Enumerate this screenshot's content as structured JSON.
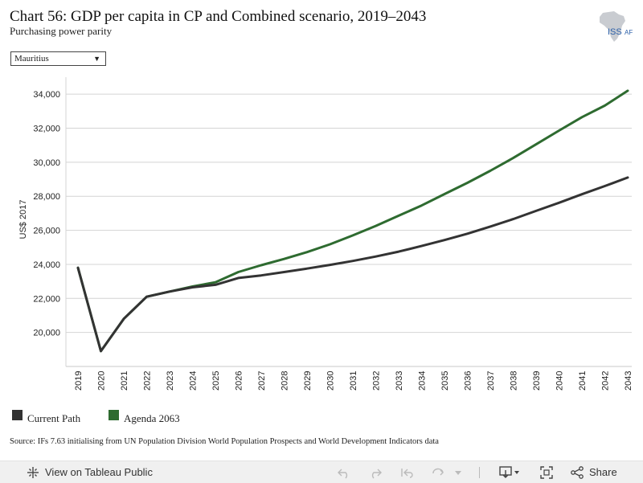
{
  "header": {
    "title": "Chart 56: GDP per capita in CP and Combined scenario, 2019–2043",
    "subtitle": "Purchasing power parity",
    "logo_text": "ISS"
  },
  "filter": {
    "selected": "Mauritius"
  },
  "chart_data": {
    "type": "line",
    "title": "Chart 56: GDP per capita in CP and Combined scenario, 2019–2043",
    "subtitle": "Purchasing power parity",
    "xlabel": "",
    "ylabel": "US$ 2017",
    "x": [
      2019,
      2020,
      2021,
      2022,
      2023,
      2024,
      2025,
      2026,
      2027,
      2028,
      2029,
      2030,
      2031,
      2032,
      2033,
      2034,
      2035,
      2036,
      2037,
      2038,
      2039,
      2040,
      2041,
      2042,
      2043
    ],
    "ylim": [
      18000,
      35000
    ],
    "yticks": [
      20000,
      22000,
      24000,
      26000,
      28000,
      30000,
      32000,
      34000
    ],
    "ytick_labels": [
      "20,000",
      "22,000",
      "24,000",
      "26,000",
      "28,000",
      "30,000",
      "32,000",
      "34,000"
    ],
    "grid": true,
    "legend_position": "bottom-left",
    "series": [
      {
        "name": "Current Path",
        "color": "#333333",
        "values": [
          23800,
          18900,
          20800,
          22100,
          22400,
          22650,
          22800,
          23200,
          23350,
          23550,
          23750,
          23970,
          24200,
          24460,
          24750,
          25080,
          25430,
          25800,
          26220,
          26660,
          27140,
          27620,
          28120,
          28600,
          29100
        ]
      },
      {
        "name": "Agenda 2063",
        "color": "#2e6b30",
        "values": [
          23800,
          18900,
          20800,
          22100,
          22400,
          22700,
          22950,
          23550,
          23950,
          24320,
          24720,
          25180,
          25700,
          26260,
          26860,
          27460,
          28130,
          28790,
          29500,
          30250,
          31050,
          31860,
          32650,
          33330,
          34200
        ]
      }
    ]
  },
  "source": "Source: IFs 7.63 initialising from UN Population Division World Population Prospects and World Development Indicators data",
  "toolbar": {
    "view_label": "View on Tableau Public",
    "share_label": "Share",
    "icons": [
      "tableau-icon",
      "undo-icon",
      "redo-icon",
      "revert-icon",
      "refresh-icon",
      "pause-icon",
      "download-icon",
      "fullscreen-icon",
      "share-icon"
    ]
  }
}
